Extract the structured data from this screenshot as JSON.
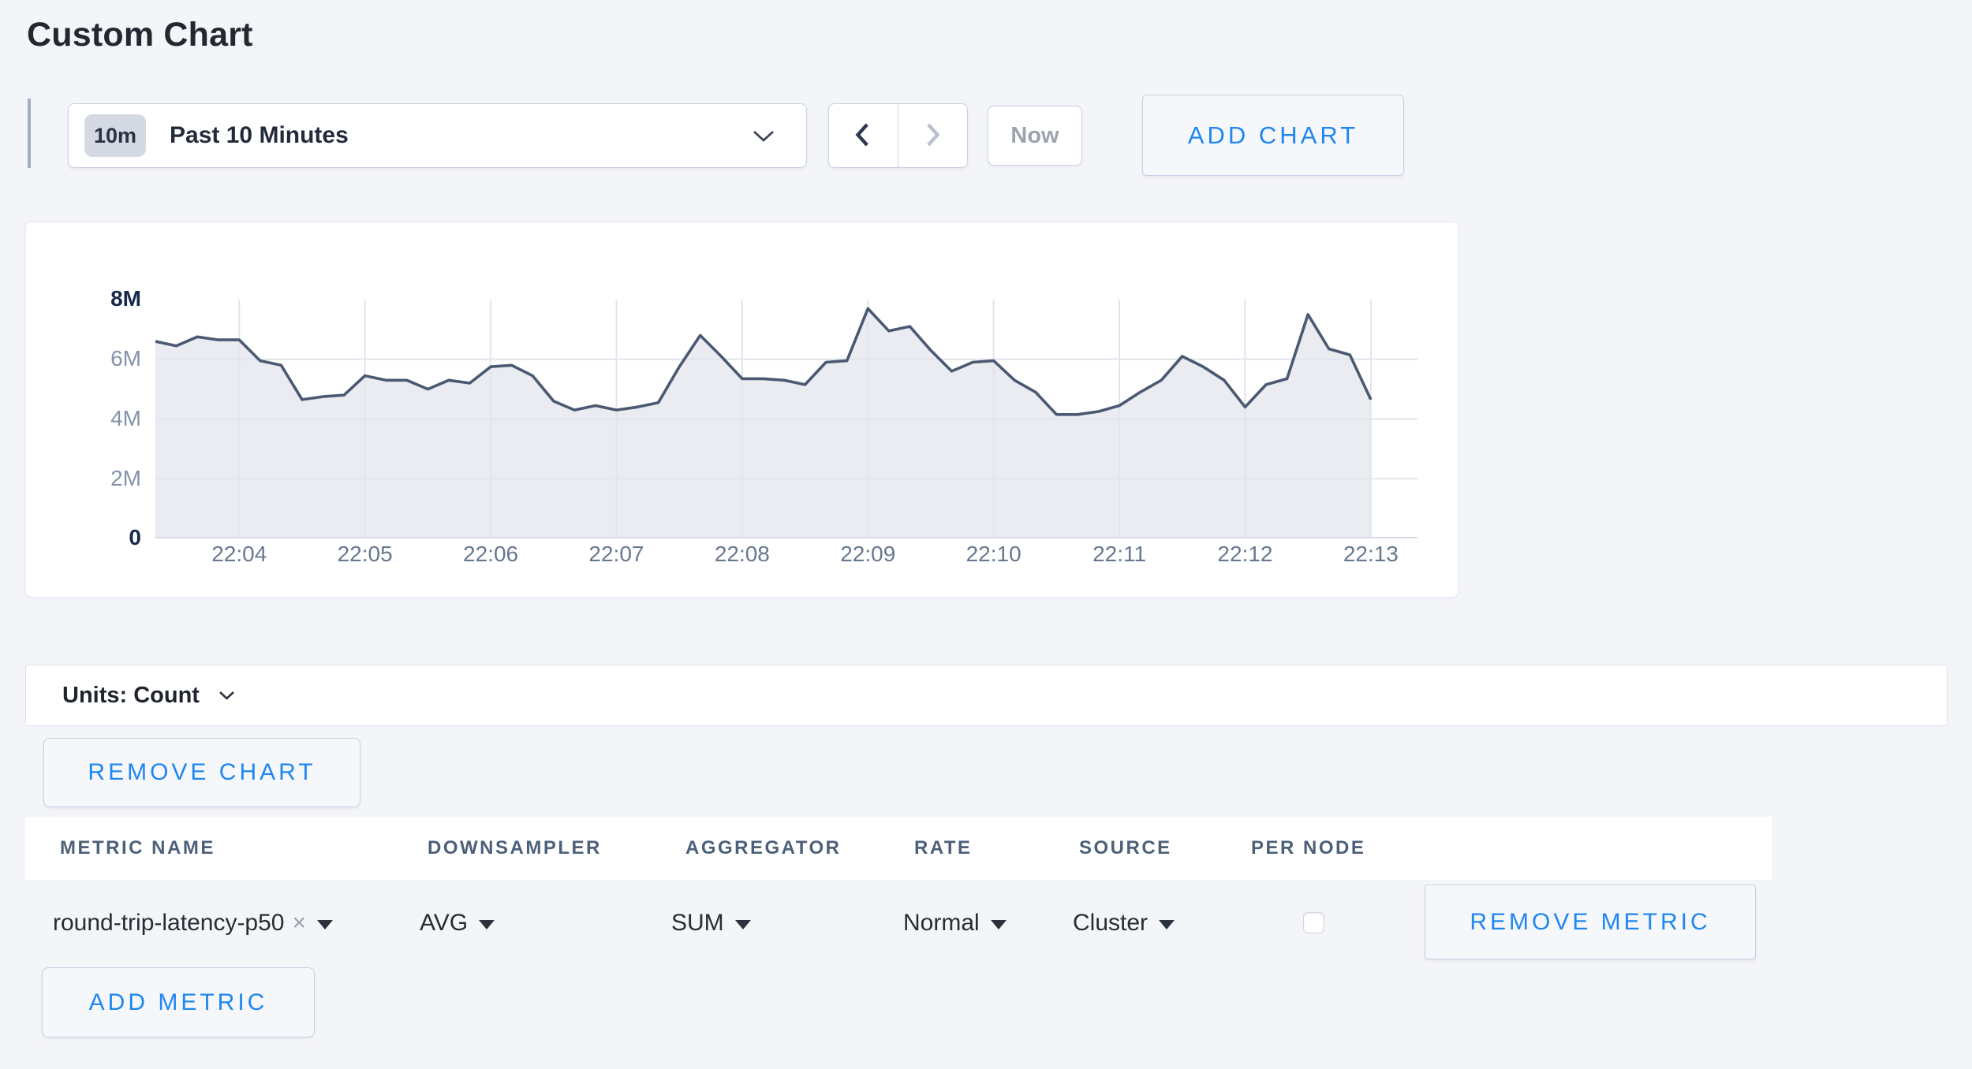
{
  "page": {
    "title": "Custom Chart"
  },
  "toolbar": {
    "time_window_badge": "10m",
    "time_window_label": "Past 10 Minutes",
    "now_label": "Now",
    "add_chart_label": "ADD CHART"
  },
  "chart_data": {
    "type": "area",
    "title": "",
    "xlabel": "",
    "ylabel": "",
    "unit": "Count",
    "x_start": "22:03:20",
    "interval_seconds": 10,
    "values_millions": [
      6.6,
      6.45,
      6.75,
      6.65,
      6.65,
      5.95,
      5.8,
      4.65,
      4.75,
      4.8,
      5.45,
      5.3,
      5.3,
      5.0,
      5.3,
      5.2,
      5.75,
      5.8,
      5.45,
      4.6,
      4.3,
      4.45,
      4.3,
      4.4,
      4.55,
      5.75,
      6.8,
      6.1,
      5.35,
      5.35,
      5.3,
      5.15,
      5.9,
      5.95,
      7.7,
      6.95,
      7.1,
      6.3,
      5.6,
      5.9,
      5.95,
      5.3,
      4.9,
      4.15,
      4.15,
      4.25,
      4.45,
      4.9,
      5.3,
      6.1,
      5.75,
      5.3,
      4.4,
      5.15,
      5.35,
      7.5,
      6.35,
      6.15,
      4.65
    ],
    "x_tick_labels": [
      "22:04",
      "22:05",
      "22:06",
      "22:07",
      "22:08",
      "22:09",
      "22:10",
      "22:11",
      "22:12",
      "22:13"
    ],
    "y_tick_labels": [
      "8M",
      "6M",
      "4M",
      "2M",
      "0"
    ],
    "ylim": [
      0,
      8000000
    ],
    "grid": true,
    "legend": "none",
    "line_color": "#4a5971",
    "fill_color": "#eaecf2",
    "grid_color": "#e1e5ee",
    "baseline_color": "#d8dce8"
  },
  "units_bar": {
    "label": "Units: Count"
  },
  "chart_controls": {
    "remove_chart_label": "REMOVE CHART",
    "add_metric_label": "ADD METRIC"
  },
  "metrics_table": {
    "headers": [
      "METRIC NAME",
      "DOWNSAMPLER",
      "AGGREGATOR",
      "RATE",
      "SOURCE",
      "PER NODE"
    ],
    "rows": [
      {
        "metric_name": "round-trip-latency-p50",
        "remove_tag": "×",
        "downsampler": "AVG",
        "aggregator": "SUM",
        "rate": "Normal",
        "source": "Cluster",
        "per_node_checked": false,
        "remove_label": "REMOVE METRIC"
      }
    ]
  },
  "colors": {
    "accent_blue": "#1e87f0",
    "page_background": "#f4f5f9",
    "dark_text": "#23272f",
    "muted_text": "#9ca3af"
  }
}
